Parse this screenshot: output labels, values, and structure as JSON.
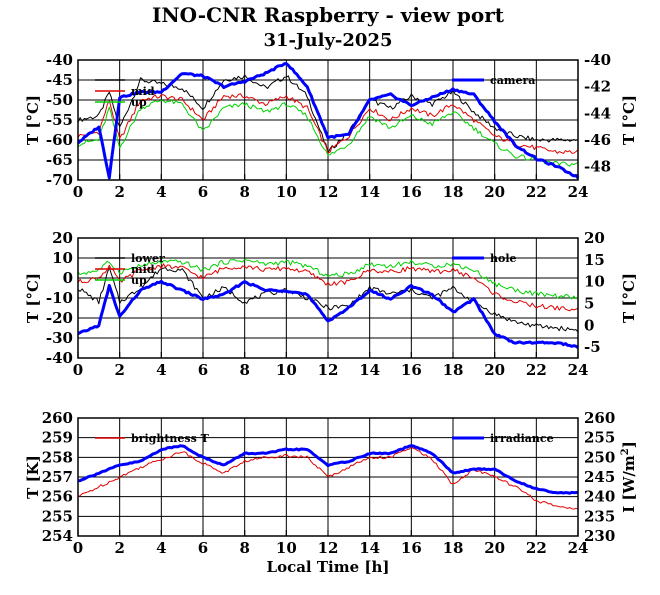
{
  "header": {
    "title": "INO-CNR Raspberry - view port",
    "subtitle": "31-July-2025"
  },
  "xlabel": "Local Time [h]",
  "chart_data": [
    {
      "type": "line",
      "xlim": [
        0,
        24
      ],
      "xticks": [
        0,
        2,
        4,
        6,
        8,
        10,
        12,
        14,
        16,
        18,
        20,
        22,
        24
      ],
      "ylim": [
        -70,
        -40
      ],
      "yticks": [
        -70,
        -65,
        -60,
        -55,
        -50,
        -45,
        -40
      ],
      "ylabel": "T [°C]",
      "y2lim": [
        -49,
        -40
      ],
      "y2ticks": [
        -48,
        -46,
        -44,
        -42,
        -40
      ],
      "y2label": "T [°C]",
      "grid": true,
      "legend": [
        "top-left",
        "top-right"
      ],
      "x": [
        0,
        1,
        1.5,
        2,
        3,
        4,
        5,
        6,
        7,
        8,
        9,
        10,
        11,
        12,
        13,
        14,
        15,
        16,
        17,
        18,
        19,
        20,
        21,
        22,
        23,
        24
      ],
      "series": [
        {
          "name": "",
          "color": "#000000",
          "axis": "left",
          "values": [
            -55,
            -54,
            -48,
            -57,
            -45,
            -46,
            -47,
            -52,
            -45,
            -44,
            -47,
            -44,
            -49,
            -63,
            -58,
            -50,
            -52,
            -49,
            -51,
            -48,
            -53,
            -57,
            -59,
            -60,
            -60,
            -60
          ]
        },
        {
          "name": "mid",
          "color": "#e00000",
          "axis": "left",
          "values": [
            -59,
            -58,
            -50,
            -60,
            -50,
            -49,
            -50,
            -55,
            -49,
            -49,
            -51,
            -49,
            -52,
            -63,
            -59,
            -52,
            -55,
            -52,
            -54,
            -51,
            -55,
            -59,
            -61,
            -62,
            -63,
            -63
          ]
        },
        {
          "name": "up",
          "color": "#00d000",
          "axis": "left",
          "values": [
            -61,
            -60,
            -52,
            -62,
            -52,
            -50,
            -51,
            -58,
            -52,
            -51,
            -53,
            -51,
            -54,
            -64,
            -61,
            -54,
            -57,
            -54,
            -56,
            -53,
            -57,
            -61,
            -64,
            -65,
            -66,
            -66
          ]
        },
        {
          "name": "camera",
          "color": "#0000ff",
          "axis": "right",
          "values": [
            -46.2,
            -45.0,
            -48.8,
            -42.8,
            -42.4,
            -42.4,
            -41.0,
            -41.2,
            -42.0,
            -41.6,
            -41.0,
            -40.2,
            -42.0,
            -45.8,
            -45.6,
            -43.0,
            -42.6,
            -43.4,
            -42.8,
            -42.2,
            -42.6,
            -44.6,
            -46.4,
            -47.4,
            -48.0,
            -48.8
          ]
        }
      ]
    },
    {
      "type": "line",
      "xlim": [
        0,
        24
      ],
      "xticks": [
        0,
        2,
        4,
        6,
        8,
        10,
        12,
        14,
        16,
        18,
        20,
        22,
        24
      ],
      "ylim": [
        -40,
        20
      ],
      "yticks": [
        -40,
        -30,
        -20,
        -10,
        0,
        10,
        20
      ],
      "ylabel": "T [°C]",
      "y2lim": [
        -7.5,
        20
      ],
      "y2ticks": [
        -5,
        0,
        5,
        10,
        15,
        20
      ],
      "y2label": "T [°C]",
      "grid": true,
      "legend": [
        "top-left",
        "top-right"
      ],
      "x": [
        0,
        1,
        1.5,
        2,
        3,
        4,
        5,
        6,
        7,
        8,
        9,
        10,
        11,
        12,
        13,
        14,
        15,
        16,
        17,
        18,
        19,
        20,
        21,
        22,
        23,
        24
      ],
      "series": [
        {
          "name": "lower",
          "color": "#000000",
          "axis": "left",
          "values": [
            -5,
            -12,
            5,
            -12,
            -5,
            5,
            4,
            -10,
            -5,
            -12,
            -8,
            -6,
            -10,
            -15,
            -14,
            -5,
            -8,
            -6,
            -10,
            -5,
            -12,
            -18,
            -22,
            -24,
            -25,
            -26
          ]
        },
        {
          "name": "mid",
          "color": "#e00000",
          "axis": "left",
          "values": [
            -2,
            0,
            6,
            -2,
            4,
            6,
            5,
            0,
            5,
            6,
            4,
            5,
            3,
            -3,
            -2,
            4,
            3,
            5,
            3,
            4,
            0,
            -8,
            -12,
            -14,
            -15,
            -16
          ]
        },
        {
          "name": "up",
          "color": "#00d000",
          "axis": "left",
          "values": [
            2,
            4,
            8,
            3,
            6,
            8,
            8,
            4,
            8,
            9,
            7,
            8,
            6,
            1,
            2,
            7,
            6,
            8,
            6,
            7,
            4,
            -3,
            -6,
            -8,
            -9,
            -10
          ]
        },
        {
          "name": "hole",
          "color": "#0000ff",
          "axis": "right",
          "values": [
            -2,
            0,
            9,
            2,
            8,
            10,
            8,
            6,
            7,
            10,
            8,
            8,
            7,
            1,
            4,
            8,
            6,
            9,
            7,
            3,
            6,
            -2,
            -4,
            -4,
            -4,
            -5
          ]
        }
      ]
    },
    {
      "type": "line",
      "xlim": [
        0,
        24
      ],
      "xticks": [
        0,
        2,
        4,
        6,
        8,
        10,
        12,
        14,
        16,
        18,
        20,
        22,
        24
      ],
      "ylim": [
        254,
        260
      ],
      "yticks": [
        254,
        255,
        256,
        257,
        258,
        259,
        260
      ],
      "ylabel": "T [K]",
      "y2lim": [
        230,
        260
      ],
      "y2ticks": [
        230,
        235,
        240,
        245,
        250,
        255,
        260
      ],
      "y2label": "I [W/m",
      "y2label_sup": "2",
      "y2label_end": "]",
      "grid": true,
      "legend": [
        "top-left",
        "top-right"
      ],
      "x": [
        0,
        1,
        2,
        3,
        4,
        5,
        6,
        7,
        8,
        9,
        10,
        11,
        12,
        13,
        14,
        15,
        16,
        17,
        18,
        19,
        20,
        21,
        22,
        23,
        24
      ],
      "series": [
        {
          "name": "brightness T",
          "color": "#e00000",
          "axis": "left",
          "values": [
            256.0,
            256.5,
            257.0,
            257.5,
            257.9,
            258.3,
            257.7,
            257.2,
            257.8,
            258.0,
            258.1,
            258.0,
            257.0,
            257.5,
            258.0,
            258.0,
            258.5,
            257.9,
            256.6,
            257.4,
            257.0,
            256.5,
            255.8,
            255.5,
            255.4
          ]
        },
        {
          "name": "irradiance",
          "color": "#0000ff",
          "axis": "right",
          "values": [
            244.0,
            246.0,
            248.0,
            249.0,
            252.0,
            253.0,
            250.0,
            248.0,
            251.0,
            251.0,
            252.0,
            252.0,
            248.0,
            249.0,
            251.0,
            251.0,
            253.0,
            251.0,
            246.0,
            247.0,
            247.0,
            244.0,
            242.0,
            241.0,
            241.0
          ]
        }
      ]
    }
  ]
}
